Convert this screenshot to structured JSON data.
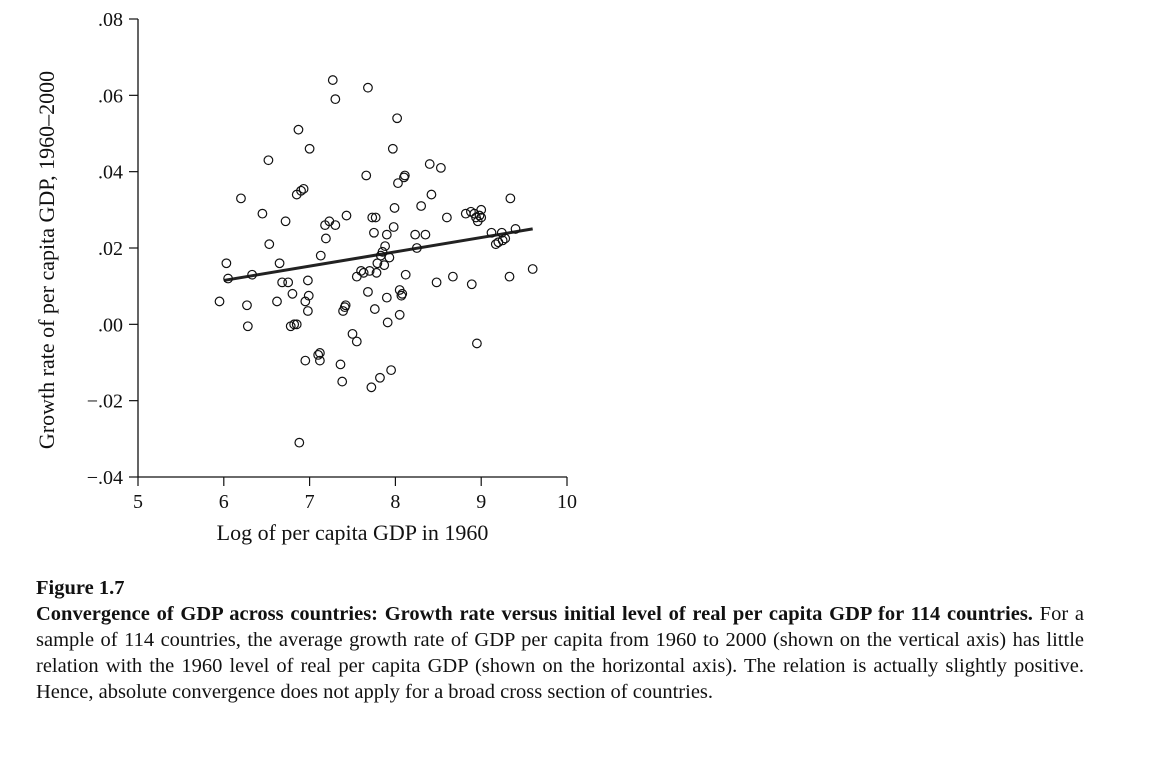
{
  "chart_data": {
    "type": "scatter",
    "xlabel": "Log of per capita GDP in 1960",
    "ylabel": "Growth rate of per capita GDP, 1960–2000",
    "xlim": [
      5,
      10
    ],
    "ylim": [
      -0.04,
      0.08
    ],
    "x_ticks": [
      5,
      6,
      7,
      8,
      9,
      10
    ],
    "x_tick_labels": [
      "5",
      "6",
      "7",
      "8",
      "9",
      "10"
    ],
    "y_ticks": [
      -0.04,
      -0.02,
      0.0,
      0.02,
      0.04,
      0.06,
      0.08
    ],
    "y_tick_labels": [
      "−.04",
      "−.02",
      ".00",
      ".02",
      ".04",
      ".06",
      ".08"
    ],
    "grid": false,
    "legend": "none",
    "marker": "open-circle",
    "points": [
      [
        5.95,
        0.006
      ],
      [
        6.03,
        0.016
      ],
      [
        6.05,
        0.012
      ],
      [
        6.2,
        0.033
      ],
      [
        6.27,
        0.005
      ],
      [
        6.28,
        -0.0005
      ],
      [
        6.33,
        0.013
      ],
      [
        6.45,
        0.029
      ],
      [
        6.52,
        0.043
      ],
      [
        6.53,
        0.021
      ],
      [
        6.62,
        0.006
      ],
      [
        6.65,
        0.016
      ],
      [
        6.68,
        0.011
      ],
      [
        6.72,
        0.027
      ],
      [
        6.75,
        0.011
      ],
      [
        6.78,
        -0.0005
      ],
      [
        6.8,
        0.008
      ],
      [
        6.82,
        0.0
      ],
      [
        6.85,
        0.0
      ],
      [
        6.85,
        0.034
      ],
      [
        6.87,
        0.051
      ],
      [
        6.88,
        -0.031
      ],
      [
        6.9,
        0.035
      ],
      [
        6.93,
        0.0355
      ],
      [
        6.95,
        -0.0095
      ],
      [
        6.95,
        0.006
      ],
      [
        6.98,
        0.0035
      ],
      [
        6.98,
        0.0115
      ],
      [
        6.99,
        0.0075
      ],
      [
        7.0,
        0.046
      ],
      [
        7.1,
        -0.008
      ],
      [
        7.12,
        -0.0075
      ],
      [
        7.12,
        -0.0095
      ],
      [
        7.13,
        0.018
      ],
      [
        7.18,
        0.026
      ],
      [
        7.19,
        0.0225
      ],
      [
        7.23,
        0.027
      ],
      [
        7.27,
        0.064
      ],
      [
        7.3,
        0.059
      ],
      [
        7.3,
        0.026
      ],
      [
        7.36,
        -0.0105
      ],
      [
        7.38,
        -0.015
      ],
      [
        7.39,
        0.0035
      ],
      [
        7.41,
        0.0045
      ],
      [
        7.42,
        0.005
      ],
      [
        7.43,
        0.0285
      ],
      [
        7.5,
        -0.0025
      ],
      [
        7.55,
        0.0125
      ],
      [
        7.55,
        -0.0045
      ],
      [
        7.6,
        0.014
      ],
      [
        7.63,
        0.0135
      ],
      [
        7.66,
        0.039
      ],
      [
        7.68,
        0.0085
      ],
      [
        7.68,
        0.062
      ],
      [
        7.7,
        0.014
      ],
      [
        7.72,
        -0.0165
      ],
      [
        7.73,
        0.028
      ],
      [
        7.75,
        0.024
      ],
      [
        7.76,
        0.004
      ],
      [
        7.77,
        0.028
      ],
      [
        7.78,
        0.0135
      ],
      [
        7.79,
        0.016
      ],
      [
        7.82,
        -0.014
      ],
      [
        7.83,
        0.018
      ],
      [
        7.85,
        0.019
      ],
      [
        7.87,
        0.0155
      ],
      [
        7.88,
        0.0205
      ],
      [
        7.9,
        0.0235
      ],
      [
        7.9,
        0.007
      ],
      [
        7.91,
        0.0005
      ],
      [
        7.93,
        0.0175
      ],
      [
        7.95,
        -0.012
      ],
      [
        7.97,
        0.046
      ],
      [
        7.98,
        0.0255
      ],
      [
        7.99,
        0.0305
      ],
      [
        8.02,
        0.054
      ],
      [
        8.03,
        0.037
      ],
      [
        8.05,
        0.0025
      ],
      [
        8.05,
        0.009
      ],
      [
        8.07,
        0.0075
      ],
      [
        8.08,
        0.008
      ],
      [
        8.1,
        0.0385
      ],
      [
        8.11,
        0.039
      ],
      [
        8.12,
        0.013
      ],
      [
        8.23,
        0.0235
      ],
      [
        8.25,
        0.02
      ],
      [
        8.3,
        0.031
      ],
      [
        8.35,
        0.0235
      ],
      [
        8.4,
        0.042
      ],
      [
        8.42,
        0.034
      ],
      [
        8.48,
        0.011
      ],
      [
        8.53,
        0.041
      ],
      [
        8.6,
        0.028
      ],
      [
        8.67,
        0.0125
      ],
      [
        8.82,
        0.029
      ],
      [
        8.88,
        0.0295
      ],
      [
        8.89,
        0.0105
      ],
      [
        8.92,
        0.029
      ],
      [
        8.94,
        0.028
      ],
      [
        8.95,
        -0.005
      ],
      [
        8.96,
        0.027
      ],
      [
        8.98,
        0.0285
      ],
      [
        9.0,
        0.028
      ],
      [
        9.0,
        0.03
      ],
      [
        9.12,
        0.024
      ],
      [
        9.17,
        0.021
      ],
      [
        9.2,
        0.0215
      ],
      [
        9.24,
        0.024
      ],
      [
        9.25,
        0.022
      ],
      [
        9.28,
        0.0225
      ],
      [
        9.33,
        0.0125
      ],
      [
        9.34,
        0.033
      ],
      [
        9.4,
        0.025
      ],
      [
        9.6,
        0.0145
      ]
    ],
    "fit_line": {
      "x": [
        6.0,
        9.6
      ],
      "y": [
        0.0115,
        0.025
      ]
    }
  },
  "caption": {
    "figure_label": "Figure 1.7",
    "bold_text": "Convergence of GDP across countries: Growth rate versus initial level of real per capita GDP for 114 countries.",
    "body_text": " For a sample of 114 countries, the average growth rate of GDP per capita from 1960 to 2000 (shown on the vertical axis) has little relation with the 1960 level of real per capita GDP (shown on the horizontal axis). The relation is actually slightly positive. Hence, absolute convergence does not apply for a broad cross section of countries."
  }
}
